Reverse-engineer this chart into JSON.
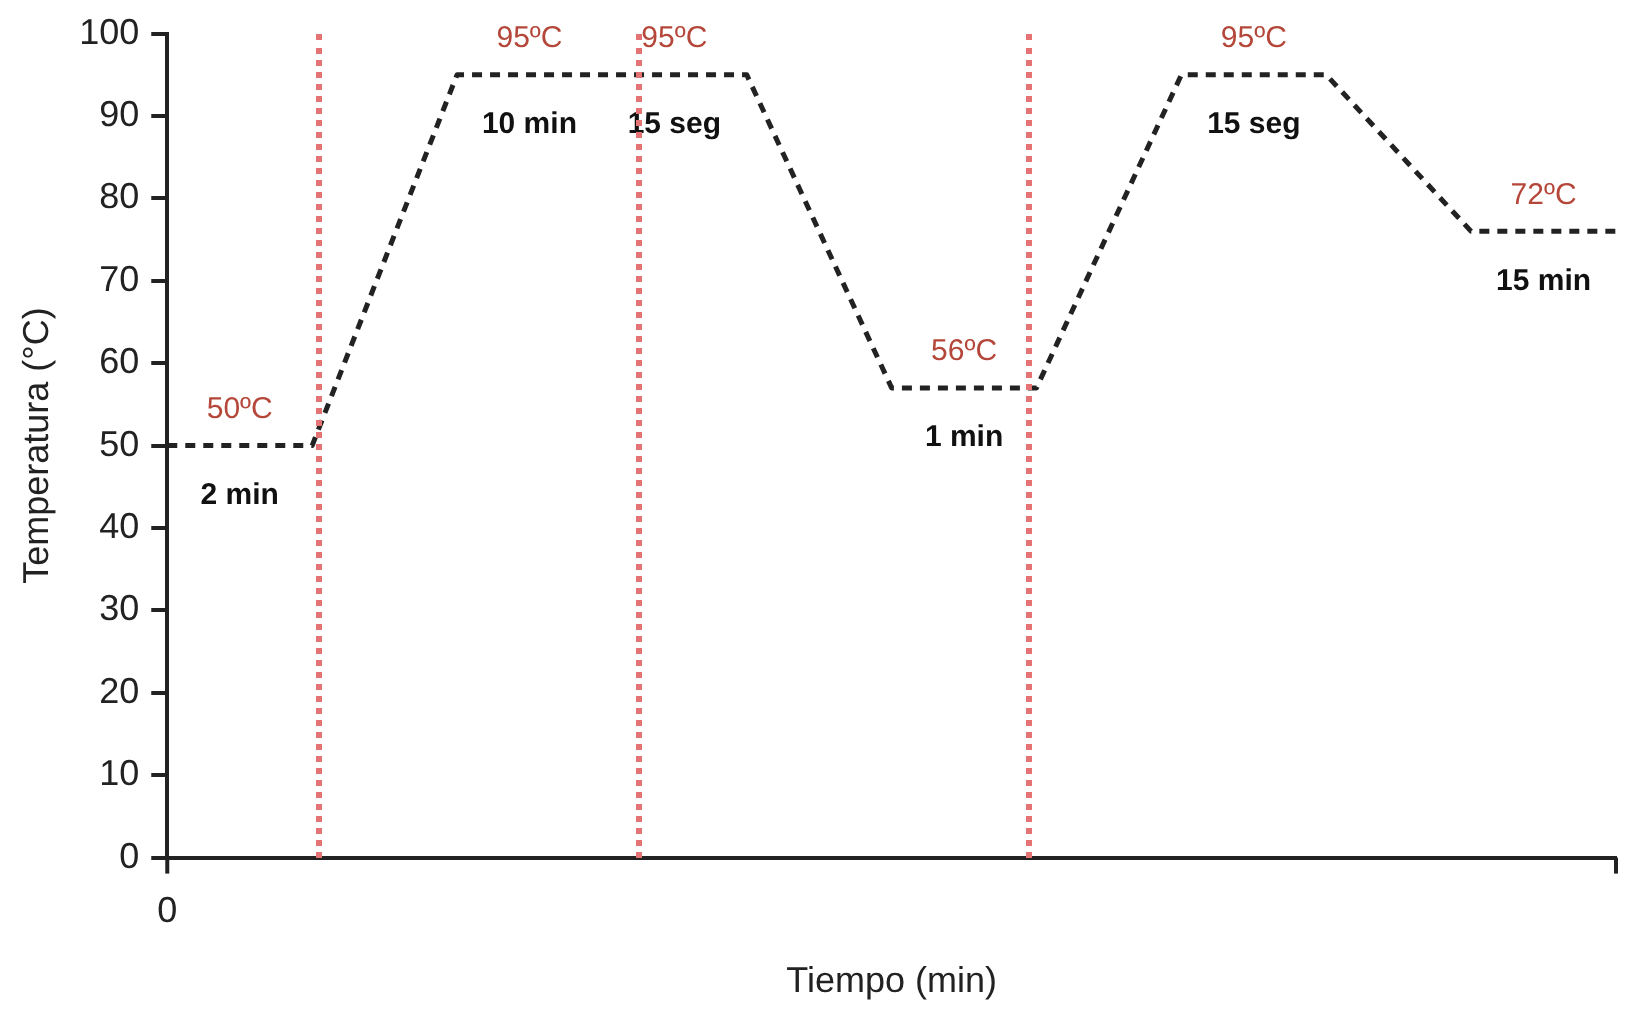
{
  "chart_data": {
    "type": "line",
    "xlabel": "Tiempo (min)",
    "ylabel": "Temperatura (°C)",
    "categories": [
      null,
      null,
      null,
      null,
      null,
      null,
      null,
      null,
      null,
      null,
      null
    ],
    "series": [
      {
        "color": "#222222",
        "values": [
          50,
          50,
          95,
          95,
          95,
          57,
          57,
          95,
          95,
          76,
          76
        ]
      }
    ],
    "ylim": [
      0,
      100
    ],
    "yticks": [
      0,
      10,
      20,
      30,
      40,
      50,
      60,
      70,
      80,
      90,
      100
    ],
    "grid": false,
    "legend": false,
    "marker": "none",
    "line_style": "dashed",
    "annotations": [
      "50ºC",
      "2 min",
      "95ºC",
      "10 min",
      "95ºC",
      "15 seg",
      "56ºC",
      "1 min",
      "95ºC",
      "15 seg",
      "72ºC",
      "15 min",
      "0"
    ]
  }
}
